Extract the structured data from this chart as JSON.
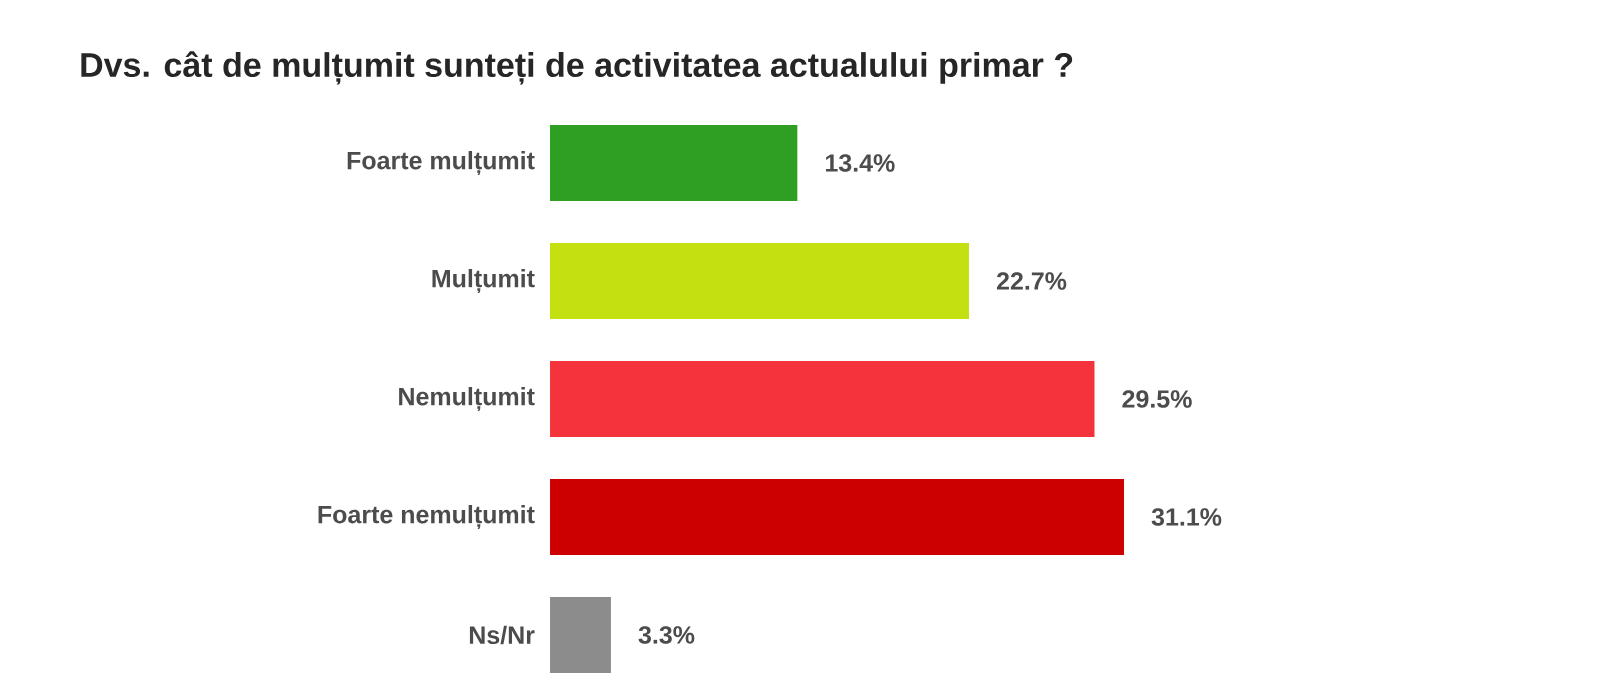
{
  "chart_data": {
    "type": "bar",
    "orientation": "horizontal",
    "title": "Dvs. cât de mulțumit sunteți de activitatea actualului primar ?",
    "categories": [
      "Foarte mulțumit",
      "Mulțumit",
      "Nemulțumit",
      "Foarte nemulțumit",
      "Ns/Nr"
    ],
    "values": [
      13.4,
      22.7,
      29.5,
      31.1,
      3.3
    ],
    "value_labels": [
      "13.4%",
      "22.7%",
      "29.5%",
      "31.1%",
      "3.3%"
    ],
    "colors": [
      "#2e9f22",
      "#c4e011",
      "#f5333c",
      "#cc0000",
      "#8c8c8c"
    ]
  }
}
